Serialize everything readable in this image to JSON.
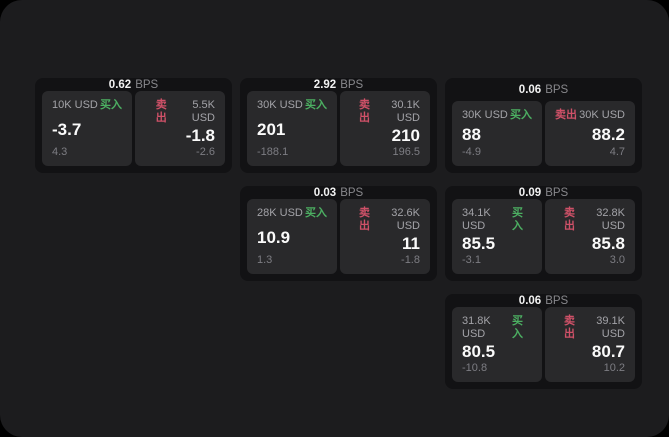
{
  "labels": {
    "bps_unit": "BPS",
    "buy": "买入",
    "sell": "卖出"
  },
  "colors": {
    "buy_green": "#4caf62",
    "sell_red": "#cf5168",
    "screen_bg": "#1c1c1e",
    "card_bg": "#121214",
    "panel_bg": "#29292b"
  },
  "cards": [
    {
      "bps": "0.62",
      "buy": {
        "amount": "10K USD",
        "value": "-3.7",
        "delta": "4.3"
      },
      "sell": {
        "amount": "5.5K USD",
        "value": "-1.8",
        "delta": "-2.6"
      }
    },
    {
      "bps": "2.92",
      "buy": {
        "amount": "30K USD",
        "value": "201",
        "delta": "-188.1"
      },
      "sell": {
        "amount": "30.1K USD",
        "value": "210",
        "delta": "196.5"
      }
    },
    {
      "bps": "0.06",
      "buy": {
        "amount": "30K USD",
        "value": "88",
        "delta": "-4.9"
      },
      "sell": {
        "amount": "30K USD",
        "value": "88.2",
        "delta": "4.7"
      }
    },
    {
      "bps": "0.03",
      "buy": {
        "amount": "28K USD",
        "value": "10.9",
        "delta": "1.3"
      },
      "sell": {
        "amount": "32.6K USD",
        "value": "11",
        "delta": "-1.8"
      }
    },
    {
      "bps": "0.09",
      "buy": {
        "amount": "34.1K USD",
        "value": "85.5",
        "delta": "-3.1"
      },
      "sell": {
        "amount": "32.8K USD",
        "value": "85.8",
        "delta": "3.0"
      }
    },
    {
      "bps": "0.06",
      "buy": {
        "amount": "31.8K USD",
        "value": "80.5",
        "delta": "-10.8"
      },
      "sell": {
        "amount": "39.1K USD",
        "value": "80.7",
        "delta": "10.2"
      }
    }
  ]
}
